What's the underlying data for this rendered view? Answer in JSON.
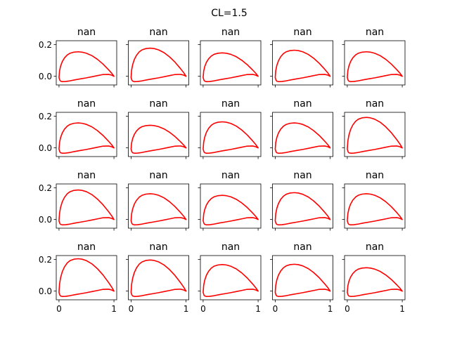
{
  "figure": {
    "title": "CL=1.5",
    "rows": 4,
    "cols": 5
  },
  "chart_data": {
    "type": "line",
    "title": "CL=1.5",
    "layout": "4x5 grid of subplots, shared x and y axes",
    "xlim": [
      -0.05,
      1.05
    ],
    "ylim": [
      -0.055,
      0.225
    ],
    "x_ticks": [
      0,
      1
    ],
    "y_ticks": [
      0.0,
      0.2
    ],
    "x_tick_labels": [
      "0",
      "1"
    ],
    "y_tick_labels": [
      "0.0",
      "0.2"
    ],
    "grid": false,
    "series_color": "#ff0000",
    "subplots": [
      {
        "title": "nan",
        "max_upper_y": 0.155
      },
      {
        "title": "nan",
        "max_upper_y": 0.178
      },
      {
        "title": "nan",
        "max_upper_y": 0.148
      },
      {
        "title": "nan",
        "max_upper_y": 0.165
      },
      {
        "title": "nan",
        "max_upper_y": 0.155
      },
      {
        "title": "nan",
        "max_upper_y": 0.158
      },
      {
        "title": "nan",
        "max_upper_y": 0.143
      },
      {
        "title": "nan",
        "max_upper_y": 0.165
      },
      {
        "title": "nan",
        "max_upper_y": 0.158
      },
      {
        "title": "nan",
        "max_upper_y": 0.193
      },
      {
        "title": "nan",
        "max_upper_y": 0.187
      },
      {
        "title": "nan",
        "max_upper_y": 0.163
      },
      {
        "title": "nan",
        "max_upper_y": 0.153
      },
      {
        "title": "nan",
        "max_upper_y": 0.17
      },
      {
        "title": "nan",
        "max_upper_y": 0.163
      },
      {
        "title": "nan",
        "max_upper_y": 0.205
      },
      {
        "title": "nan",
        "max_upper_y": 0.197
      },
      {
        "title": "nan",
        "max_upper_y": 0.168
      },
      {
        "title": "nan",
        "max_upper_y": 0.17
      },
      {
        "title": "nan",
        "max_upper_y": 0.148
      }
    ],
    "lower_surface": {
      "x": [
        1.0,
        0.95,
        0.9,
        0.8,
        0.7,
        0.6,
        0.5,
        0.4,
        0.3,
        0.2,
        0.12,
        0.06,
        0.03,
        0.015,
        0.0
      ],
      "y": [
        0.0,
        0.008,
        0.012,
        0.011,
        0.004,
        -0.003,
        -0.01,
        -0.016,
        -0.022,
        -0.029,
        -0.033,
        -0.034,
        -0.031,
        -0.025,
        -0.008
      ]
    },
    "upper_surface_shape": {
      "x": [
        0.0,
        0.01,
        0.03,
        0.06,
        0.1,
        0.15,
        0.2,
        0.27,
        0.35,
        0.42,
        0.5,
        0.6,
        0.7,
        0.8,
        0.9,
        0.96,
        1.0
      ],
      "y_norm": [
        0.05,
        0.22,
        0.42,
        0.6,
        0.75,
        0.87,
        0.94,
        0.985,
        1.0,
        0.985,
        0.94,
        0.84,
        0.69,
        0.5,
        0.27,
        0.12,
        0.0
      ]
    }
  }
}
